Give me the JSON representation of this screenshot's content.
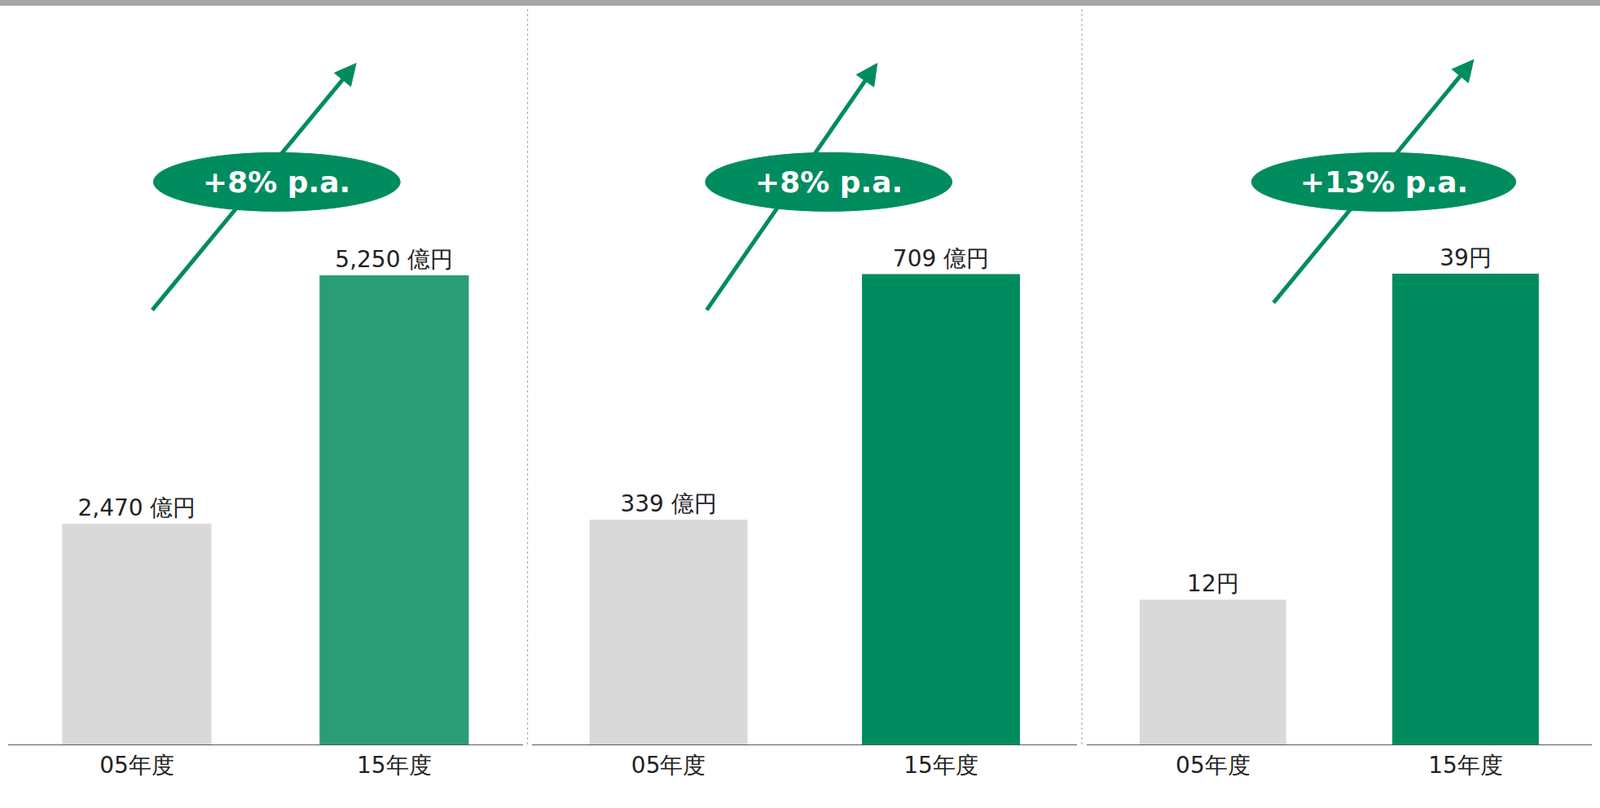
{
  "chart_data": [
    {
      "type": "bar",
      "categories": [
        "05年度",
        "15年度"
      ],
      "values": [
        2470,
        5250
      ],
      "value_labels": [
        "2,470 億円",
        "5,250 億円"
      ],
      "colors": [
        "#d9d9d9",
        "#2a9d76"
      ],
      "ylim": [
        0,
        8240
      ],
      "tick_labels": "x",
      "data_labels": true,
      "annotations": [
        "+8% p.a."
      ]
    },
    {
      "type": "bar",
      "categories": [
        "05年度",
        "15年度"
      ],
      "values": [
        339,
        709
      ],
      "value_labels": [
        "339 億円",
        "709 億円"
      ],
      "colors": [
        "#d9d9d9",
        "#008c5f"
      ],
      "ylim": [
        0,
        1110
      ],
      "tick_labels": "x",
      "data_labels": true,
      "annotations": [
        "+8% p.a."
      ]
    },
    {
      "type": "bar",
      "categories": [
        "05年度",
        "15年度"
      ],
      "values": [
        12,
        39
      ],
      "value_labels": [
        "12円",
        "39円"
      ],
      "colors": [
        "#d9d9d9",
        "#008c5f"
      ],
      "ylim": [
        0,
        61
      ],
      "tick_labels": "x",
      "data_labels": true,
      "annotations": [
        "+13% p.a."
      ]
    }
  ]
}
